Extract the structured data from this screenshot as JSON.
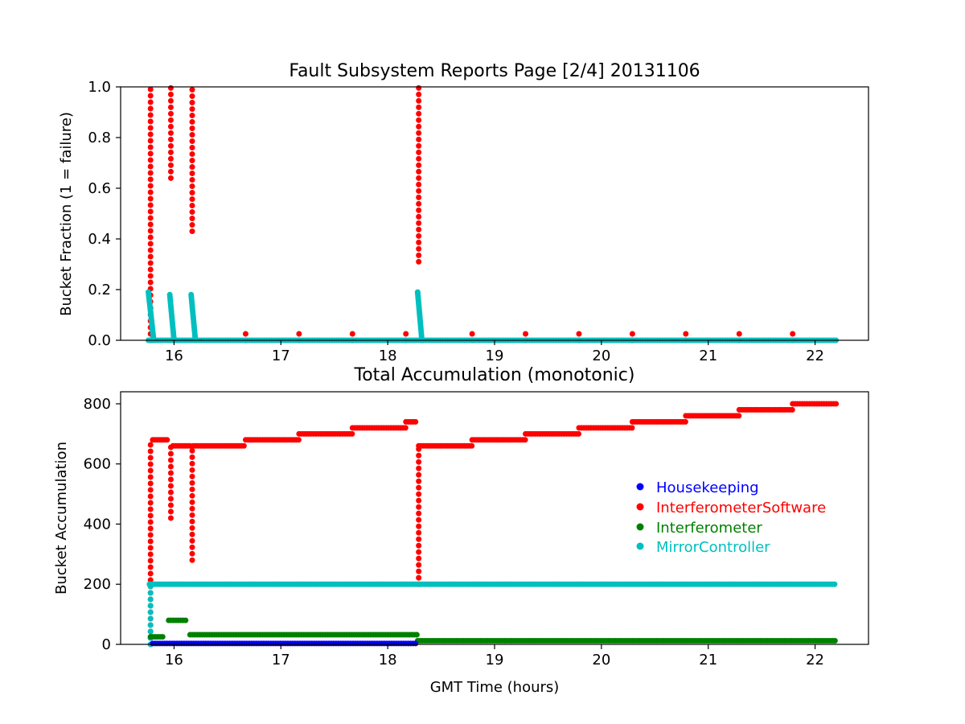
{
  "colors": {
    "Housekeeping": "#0000ff",
    "InterferometerSoftware": "#ff0000",
    "Interferometer": "#008000",
    "MirrorController": "#00bfbf"
  },
  "chart_data": [
    {
      "type": "scatter",
      "title": "Fault Subsystem Reports Page [2/4] 20131106",
      "xlabel": "",
      "ylabel": "Bucket Fraction (1 = failure)",
      "xlim": [
        15.5,
        22.5
      ],
      "ylim": [
        0,
        1
      ],
      "xticks": [
        16,
        17,
        18,
        19,
        20,
        21,
        22
      ],
      "xtick_labels": [
        "16",
        "17",
        "18",
        "19",
        "20",
        "21",
        "22"
      ],
      "yticks": [
        0,
        0.2,
        0.4,
        0.6,
        0.8,
        1.0
      ],
      "ytick_labels": [
        "0.0",
        "0.2",
        "0.4",
        "0.6",
        "0.8",
        "1.0"
      ],
      "grid": false,
      "series": [
        {
          "name": "InterferometerSoftware",
          "vertical_segments": [
            {
              "x": 15.78,
              "y0": 0,
              "y1": 1.0
            },
            {
              "x": 15.97,
              "y0": 0.64,
              "y1": 1.0
            },
            {
              "x": 16.17,
              "y0": 0.43,
              "y1": 1.0
            },
            {
              "x": 18.29,
              "y0": 0.31,
              "y1": 1.0
            }
          ],
          "spikes": [
            {
              "x": 16.67,
              "y": 0.04
            },
            {
              "x": 17.17,
              "y": 0.04
            },
            {
              "x": 17.67,
              "y": 0.04
            },
            {
              "x": 18.17,
              "y": 0.04
            },
            {
              "x": 18.79,
              "y": 0.04
            },
            {
              "x": 19.29,
              "y": 0.04
            },
            {
              "x": 19.79,
              "y": 0.04
            },
            {
              "x": 20.29,
              "y": 0.04
            },
            {
              "x": 20.79,
              "y": 0.04
            },
            {
              "x": 21.29,
              "y": 0.04
            },
            {
              "x": 21.79,
              "y": 0.04
            }
          ]
        },
        {
          "name": "MirrorController",
          "decays": [
            {
              "x0": 15.76,
              "x1": 15.81,
              "y0": 0.19
            },
            {
              "x0": 15.96,
              "x1": 16.0,
              "y0": 0.18
            },
            {
              "x0": 16.16,
              "x1": 16.2,
              "y0": 0.18
            },
            {
              "x0": 18.28,
              "x1": 18.32,
              "y0": 0.19
            }
          ],
          "baseline": {
            "x0": 15.76,
            "x1": 22.2,
            "y": 0
          }
        }
      ]
    },
    {
      "type": "scatter",
      "title": "Total Accumulation (monotonic)",
      "xlabel": "GMT Time (hours)",
      "ylabel": "Bucket Accumulation",
      "xlim": [
        15.5,
        22.5
      ],
      "ylim": [
        0,
        840
      ],
      "xticks": [
        16,
        17,
        18,
        19,
        20,
        21,
        22
      ],
      "xtick_labels": [
        "16",
        "17",
        "18",
        "19",
        "20",
        "21",
        "22"
      ],
      "yticks": [
        0,
        200,
        400,
        600,
        800
      ],
      "ytick_labels": [
        "0",
        "200",
        "400",
        "600",
        "800"
      ],
      "grid": false,
      "legend": {
        "placement": "center-right",
        "entries": [
          "Housekeeping",
          "InterferometerSoftware",
          "Interferometer",
          "MirrorController"
        ]
      },
      "series": [
        {
          "name": "InterferometerSoftware",
          "steps": [
            {
              "x0": 15.8,
              "x1": 15.95,
              "y": 680
            },
            {
              "x0": 15.99,
              "x1": 16.15,
              "y": 660
            },
            {
              "x0": 16.18,
              "x1": 16.67,
              "y": 660
            },
            {
              "x0": 16.67,
              "x1": 17.17,
              "y": 680
            },
            {
              "x0": 17.17,
              "x1": 17.67,
              "y": 700
            },
            {
              "x0": 17.67,
              "x1": 18.17,
              "y": 720
            },
            {
              "x0": 18.17,
              "x1": 18.28,
              "y": 740
            },
            {
              "x0": 18.29,
              "x1": 18.79,
              "y": 660
            },
            {
              "x0": 18.79,
              "x1": 19.29,
              "y": 680
            },
            {
              "x0": 19.29,
              "x1": 19.79,
              "y": 700
            },
            {
              "x0": 19.79,
              "x1": 20.29,
              "y": 720
            },
            {
              "x0": 20.29,
              "x1": 20.79,
              "y": 740
            },
            {
              "x0": 20.79,
              "x1": 21.29,
              "y": 760
            },
            {
              "x0": 21.29,
              "x1": 21.79,
              "y": 780
            },
            {
              "x0": 21.79,
              "x1": 22.2,
              "y": 800
            }
          ],
          "vertical_segments": [
            {
              "x": 15.78,
              "y0": 0,
              "y1": 680
            },
            {
              "x": 15.97,
              "y0": 420,
              "y1": 660
            },
            {
              "x": 16.17,
              "y0": 280,
              "y1": 660
            },
            {
              "x": 18.29,
              "y0": 200,
              "y1": 660
            }
          ]
        },
        {
          "name": "MirrorController",
          "steps": [
            {
              "x0": 15.77,
              "x1": 22.2,
              "y": 200
            }
          ],
          "vertical_segments": [
            {
              "x": 15.78,
              "y0": 0,
              "y1": 200
            }
          ]
        },
        {
          "name": "Interferometer",
          "steps": [
            {
              "x0": 15.78,
              "x1": 15.9,
              "y": 25
            },
            {
              "x0": 15.95,
              "x1": 16.12,
              "y": 80
            },
            {
              "x0": 16.15,
              "x1": 18.28,
              "y": 32
            },
            {
              "x0": 18.28,
              "x1": 22.2,
              "y": 12
            }
          ]
        },
        {
          "name": "Housekeeping",
          "steps": [
            {
              "x0": 15.8,
              "x1": 18.28,
              "y": 3
            }
          ]
        }
      ]
    }
  ]
}
